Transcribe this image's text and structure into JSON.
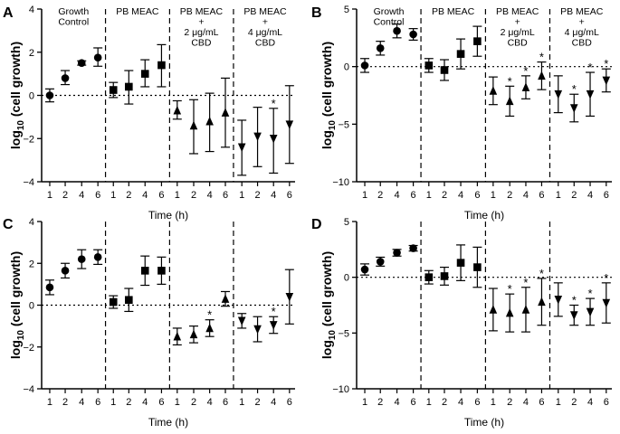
{
  "chart_data": [
    {
      "type": "scatter",
      "panel": "A",
      "ylabel": "log10 (cell growth)",
      "xlabel": "Time (h)",
      "ylim": [
        -4,
        4
      ],
      "yticks": [
        -4,
        -2,
        0,
        2,
        4
      ],
      "groups": [
        {
          "label": [
            "Growth",
            "Control"
          ],
          "marker": "circle",
          "x": [
            "1",
            "2",
            "4",
            "6"
          ],
          "y": [
            0.0,
            0.8,
            1.5,
            1.75
          ],
          "err_low": [
            0.3,
            0.3,
            0.1,
            0.4
          ],
          "err_high": [
            0.3,
            0.35,
            0.1,
            0.45
          ],
          "sig": [
            false,
            false,
            false,
            false
          ]
        },
        {
          "label": [
            "PB MEAC"
          ],
          "marker": "square",
          "x": [
            "1",
            "2",
            "4",
            "6"
          ],
          "y": [
            0.25,
            0.4,
            1.0,
            1.4
          ],
          "err_low": [
            0.35,
            0.8,
            0.6,
            1.0
          ],
          "err_high": [
            0.35,
            0.75,
            0.65,
            0.95
          ],
          "sig": [
            false,
            false,
            false,
            false
          ]
        },
        {
          "label": [
            "PB MEAC",
            "+",
            "2 μg/mL",
            "CBD"
          ],
          "marker": "triangle-up",
          "x": [
            "1",
            "2",
            "4",
            "6"
          ],
          "y": [
            -0.7,
            -1.4,
            -1.2,
            -0.8
          ],
          "err_low": [
            0.4,
            1.3,
            1.4,
            1.6
          ],
          "err_high": [
            0.45,
            1.2,
            1.3,
            1.6
          ],
          "sig": [
            false,
            false,
            false,
            false
          ]
        },
        {
          "label": [
            "PB MEAC",
            "+",
            "4 μg/mL",
            "CBD"
          ],
          "marker": "triangle-down",
          "x": [
            "1",
            "2",
            "4",
            "6"
          ],
          "y": [
            -2.4,
            -1.9,
            -2.0,
            -1.35
          ],
          "err_low": [
            1.3,
            1.4,
            1.6,
            1.8
          ],
          "err_high": [
            1.25,
            1.35,
            1.4,
            1.8
          ],
          "sig": [
            false,
            false,
            true,
            false
          ]
        }
      ]
    },
    {
      "type": "scatter",
      "panel": "B",
      "ylabel": "log10 (cell growth)",
      "xlabel": "Time (h)",
      "ylim": [
        -10,
        5
      ],
      "yticks": [
        -10,
        -5,
        0,
        5
      ],
      "groups": [
        {
          "label": [
            "Growth",
            "Control"
          ],
          "marker": "circle",
          "x": [
            "1",
            "2",
            "4",
            "6"
          ],
          "y": [
            0.1,
            1.6,
            3.1,
            2.8
          ],
          "err_low": [
            0.6,
            0.6,
            0.6,
            0.5
          ],
          "err_high": [
            0.6,
            0.6,
            0.6,
            0.5
          ],
          "sig": [
            false,
            false,
            false,
            false
          ]
        },
        {
          "label": [
            "PB MEAC"
          ],
          "marker": "square",
          "x": [
            "1",
            "2",
            "4",
            "6"
          ],
          "y": [
            0.1,
            -0.3,
            1.1,
            2.2
          ],
          "err_low": [
            0.6,
            0.9,
            1.3,
            1.3
          ],
          "err_high": [
            0.6,
            0.9,
            1.3,
            1.3
          ],
          "sig": [
            false,
            false,
            false,
            false
          ]
        },
        {
          "label": [
            "PB MEAC",
            "+",
            "2 μg/mL",
            "CBD"
          ],
          "marker": "triangle-up",
          "x": [
            "1",
            "2",
            "4",
            "6"
          ],
          "y": [
            -2.1,
            -3.0,
            -1.8,
            -0.8
          ],
          "err_low": [
            1.2,
            1.3,
            1.0,
            1.2
          ],
          "err_high": [
            1.2,
            1.3,
            1.0,
            1.2
          ],
          "sig": [
            false,
            true,
            true,
            true
          ]
        },
        {
          "label": [
            "PB MEAC",
            "+",
            "4 μg/mL",
            "CBD"
          ],
          "marker": "triangle-down",
          "x": [
            "1",
            "2",
            "4",
            "6"
          ],
          "y": [
            -2.4,
            -3.6,
            -2.4,
            -1.2
          ],
          "err_low": [
            1.6,
            1.2,
            1.9,
            1.0
          ],
          "err_high": [
            1.6,
            1.2,
            1.9,
            1.0
          ],
          "sig": [
            false,
            true,
            true,
            true
          ]
        }
      ]
    },
    {
      "type": "scatter",
      "panel": "C",
      "ylabel": "log10 (cell growth)",
      "xlabel": "Time (h)",
      "ylim": [
        -4,
        4
      ],
      "yticks": [
        -4,
        -2,
        0,
        2,
        4
      ],
      "groups": [
        {
          "label": [],
          "marker": "circle",
          "x": [
            "1",
            "2",
            "4",
            "6"
          ],
          "y": [
            0.85,
            1.65,
            2.2,
            2.3
          ],
          "err_low": [
            0.35,
            0.35,
            0.45,
            0.35
          ],
          "err_high": [
            0.35,
            0.35,
            0.45,
            0.35
          ],
          "sig": [
            false,
            false,
            false,
            false
          ]
        },
        {
          "label": [],
          "marker": "square",
          "x": [
            "1",
            "2",
            "4",
            "6"
          ],
          "y": [
            0.15,
            0.25,
            1.65,
            1.65
          ],
          "err_low": [
            0.3,
            0.55,
            0.7,
            0.65
          ],
          "err_high": [
            0.3,
            0.55,
            0.7,
            0.65
          ],
          "sig": [
            false,
            false,
            false,
            false
          ]
        },
        {
          "label": [],
          "marker": "triangle-up",
          "x": [
            "1",
            "2",
            "4",
            "6"
          ],
          "y": [
            -1.5,
            -1.4,
            -1.1,
            0.3
          ],
          "err_low": [
            0.4,
            0.4,
            0.4,
            0.35
          ],
          "err_high": [
            0.4,
            0.4,
            0.4,
            0.35
          ],
          "sig": [
            false,
            false,
            true,
            false
          ]
        },
        {
          "label": [],
          "marker": "triangle-down",
          "x": [
            "1",
            "2",
            "4",
            "6"
          ],
          "y": [
            -0.75,
            -1.15,
            -0.95,
            0.4
          ],
          "err_low": [
            0.35,
            0.6,
            0.4,
            1.3
          ],
          "err_high": [
            0.35,
            0.6,
            0.4,
            1.3
          ],
          "sig": [
            false,
            false,
            true,
            false
          ]
        }
      ]
    },
    {
      "type": "scatter",
      "panel": "D",
      "ylabel": "log10 (cell growth)",
      "xlabel": "Time (h)",
      "ylim": [
        -10,
        5
      ],
      "yticks": [
        -10,
        -5,
        0,
        5
      ],
      "groups": [
        {
          "label": [],
          "marker": "circle",
          "x": [
            "1",
            "2",
            "4",
            "6"
          ],
          "y": [
            0.7,
            1.4,
            2.2,
            2.6
          ],
          "err_low": [
            0.5,
            0.4,
            0.3,
            0.25
          ],
          "err_high": [
            0.5,
            0.4,
            0.3,
            0.25
          ],
          "sig": [
            false,
            false,
            false,
            false
          ]
        },
        {
          "label": [],
          "marker": "square",
          "x": [
            "1",
            "2",
            "4",
            "6"
          ],
          "y": [
            0.0,
            0.1,
            1.3,
            0.9
          ],
          "err_low": [
            0.6,
            0.8,
            1.6,
            1.8
          ],
          "err_high": [
            0.6,
            0.8,
            1.6,
            1.8
          ],
          "sig": [
            false,
            false,
            false,
            false
          ]
        },
        {
          "label": [],
          "marker": "triangle-up",
          "x": [
            "1",
            "2",
            "4",
            "6"
          ],
          "y": [
            -2.9,
            -3.2,
            -2.9,
            -2.2
          ],
          "err_low": [
            1.9,
            1.7,
            2.0,
            2.1
          ],
          "err_high": [
            1.9,
            1.7,
            2.0,
            2.1
          ],
          "sig": [
            false,
            true,
            true,
            true
          ]
        },
        {
          "label": [],
          "marker": "triangle-down",
          "x": [
            "1",
            "2",
            "4",
            "6"
          ],
          "y": [
            -2.0,
            -3.4,
            -3.1,
            -2.3
          ],
          "err_low": [
            1.5,
            0.9,
            1.2,
            1.8
          ],
          "err_high": [
            1.5,
            0.9,
            1.2,
            1.8
          ],
          "sig": [
            false,
            true,
            true,
            true
          ]
        }
      ]
    }
  ]
}
